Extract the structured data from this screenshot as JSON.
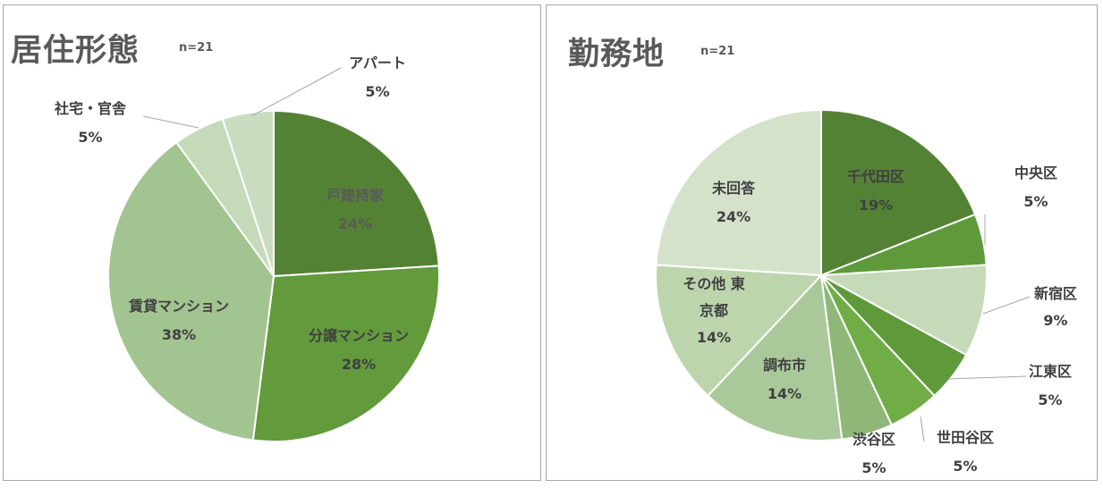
{
  "chart_data": [
    {
      "type": "pie",
      "title": "居住形態",
      "note": "n=21",
      "slices": [
        {
          "label": "戸建持家",
          "value": 24,
          "display": "24%",
          "color": "#548235"
        },
        {
          "label": "分譲マンション",
          "value": 28,
          "display": "28%",
          "color": "#629a3c"
        },
        {
          "label": "賃貸マンション",
          "value": 38,
          "display": "38%",
          "color": "#a2c490"
        },
        {
          "label": "社宅・官舎",
          "value": 5,
          "display": "5%",
          "color": "#c5dab8"
        },
        {
          "label": "アパート",
          "value": 5,
          "display": "5%",
          "color": "#c9dcbf"
        }
      ]
    },
    {
      "type": "pie",
      "title": "勤務地",
      "note": "n=21",
      "slices": [
        {
          "label": "千代田区",
          "value": 19,
          "display": "19%",
          "color": "#548235"
        },
        {
          "label": "中央区",
          "value": 5,
          "display": "5%",
          "color": "#5e9a3a"
        },
        {
          "label": "新宿区",
          "value": 9,
          "display": "9%",
          "color": "#c5dab8"
        },
        {
          "label": "江東区",
          "value": 5,
          "display": "5%",
          "color": "#5e9a3a"
        },
        {
          "label": "世田谷区",
          "value": 5,
          "display": "5%",
          "color": "#70ad47"
        },
        {
          "label": "渋谷区",
          "value": 5,
          "display": "5%",
          "color": "#8fb878"
        },
        {
          "label": "調布市",
          "value": 14,
          "display": "14%",
          "color": "#a9c99a"
        },
        {
          "label": "その他 東京都",
          "value": 14,
          "display": "14%",
          "color": "#bdd5ad"
        },
        {
          "label": "未回答",
          "value": 24,
          "display": "24%",
          "color": "#d3e2c9"
        }
      ]
    }
  ]
}
